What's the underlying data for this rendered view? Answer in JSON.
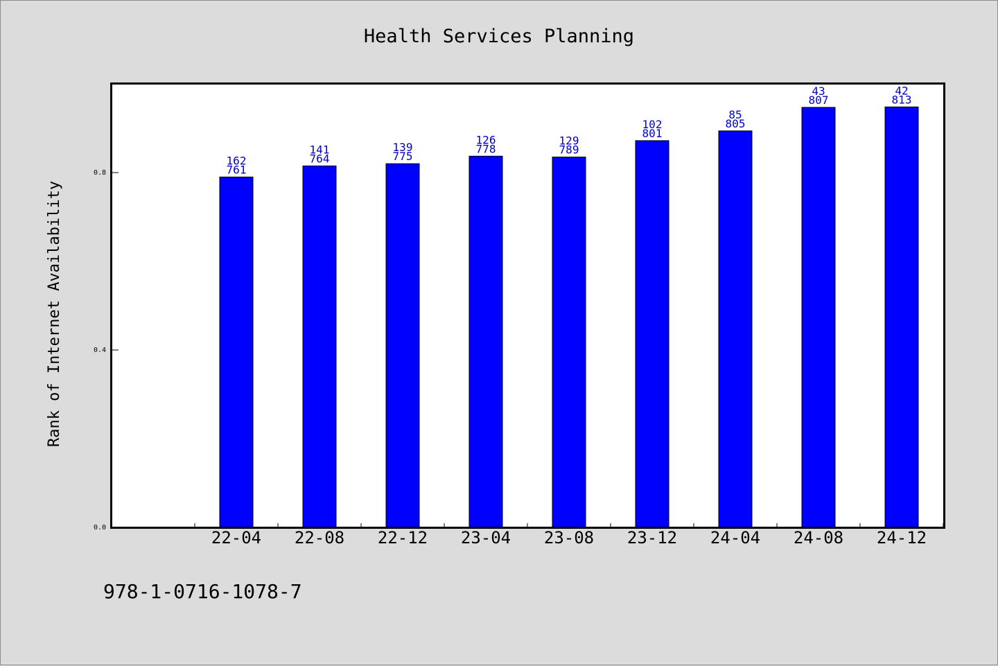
{
  "chart_data": {
    "type": "bar",
    "title": "Health Services Planning",
    "xlabel": "",
    "ylabel": "Rank of Internet Availability",
    "categories": [
      "22-04",
      "22-08",
      "22-12",
      "23-04",
      "23-08",
      "23-12",
      "24-04",
      "24-08",
      "24-12"
    ],
    "values": [
      0.79,
      0.815,
      0.82,
      0.837,
      0.835,
      0.872,
      0.894,
      0.947,
      0.948
    ],
    "label_top": [
      "162",
      "141",
      "139",
      "126",
      "129",
      "102",
      "85",
      "43",
      "42"
    ],
    "label_bottom": [
      "761",
      "764",
      "775",
      "778",
      "789",
      "801",
      "805",
      "807",
      "813"
    ],
    "yticks": [
      0.0,
      0.4,
      0.8
    ],
    "ytick_labels": [
      "0.0",
      "0.4",
      "0.8"
    ],
    "ylim": [
      0,
      1.0
    ],
    "grid": false,
    "bar_color": "#0000ff",
    "label_color": "#0000cc"
  },
  "footer": {
    "code": "978-1-0716-1078-7"
  }
}
